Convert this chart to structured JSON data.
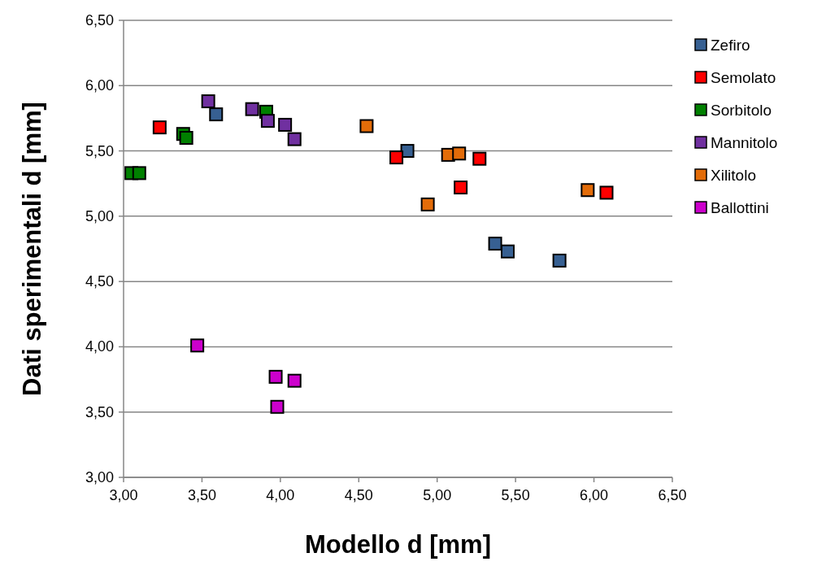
{
  "chart_data": {
    "type": "scatter",
    "xlabel": "Modello d [mm]",
    "ylabel": "Dati sperimentali d [mm]",
    "xlim": [
      3,
      6.5
    ],
    "ylim": [
      3,
      6.5
    ],
    "xticks": [
      {
        "value": 3,
        "label": "3,00"
      },
      {
        "value": 3.5,
        "label": "3,50"
      },
      {
        "value": 4,
        "label": "4,00"
      },
      {
        "value": 4.5,
        "label": "4,50"
      },
      {
        "value": 5,
        "label": "5,00"
      },
      {
        "value": 5.5,
        "label": "5,50"
      },
      {
        "value": 6,
        "label": "6,00"
      },
      {
        "value": 6.5,
        "label": "6,50"
      }
    ],
    "yticks": [
      {
        "value": 3,
        "label": "3,00"
      },
      {
        "value": 3.5,
        "label": "3,50"
      },
      {
        "value": 4,
        "label": "4,00"
      },
      {
        "value": 4.5,
        "label": "4,50"
      },
      {
        "value": 5,
        "label": "5,00"
      },
      {
        "value": 5.5,
        "label": "5,50"
      },
      {
        "value": 6,
        "label": "6,00"
      },
      {
        "value": 6.5,
        "label": "6,50"
      }
    ],
    "grid": "y",
    "legend": "right",
    "marker": "square",
    "series": [
      {
        "name": "Zefiro",
        "color": "#376092",
        "x": [
          3.59,
          4.81,
          5.37,
          5.45,
          5.78
        ],
        "values": [
          5.78,
          5.5,
          4.79,
          4.73,
          4.66
        ]
      },
      {
        "name": "Semolato",
        "color": "#ff0000",
        "x": [
          3.23,
          4.74,
          5.27,
          5.15,
          6.08
        ],
        "values": [
          5.68,
          5.45,
          5.44,
          5.22,
          5.18
        ]
      },
      {
        "name": "Sorbitolo",
        "color": "#008000",
        "x": [
          3.38,
          3.4,
          3.91,
          3.05,
          3.1
        ],
        "values": [
          5.63,
          5.6,
          5.8,
          5.33,
          5.33
        ]
      },
      {
        "name": "Mannitolo",
        "color": "#7030a0",
        "x": [
          3.54,
          3.82,
          3.92,
          4.03,
          4.09
        ],
        "values": [
          5.88,
          5.82,
          5.73,
          5.7,
          5.59
        ]
      },
      {
        "name": "Xilitolo",
        "color": "#e36c09",
        "x": [
          4.55,
          5.07,
          5.14,
          4.94,
          5.96
        ],
        "values": [
          5.69,
          5.47,
          5.48,
          5.09,
          5.2
        ]
      },
      {
        "name": "Ballottini",
        "color": "#cc00cc",
        "x": [
          3.47,
          3.97,
          4.09,
          3.98
        ],
        "values": [
          4.01,
          3.77,
          3.74,
          3.54
        ]
      }
    ]
  }
}
